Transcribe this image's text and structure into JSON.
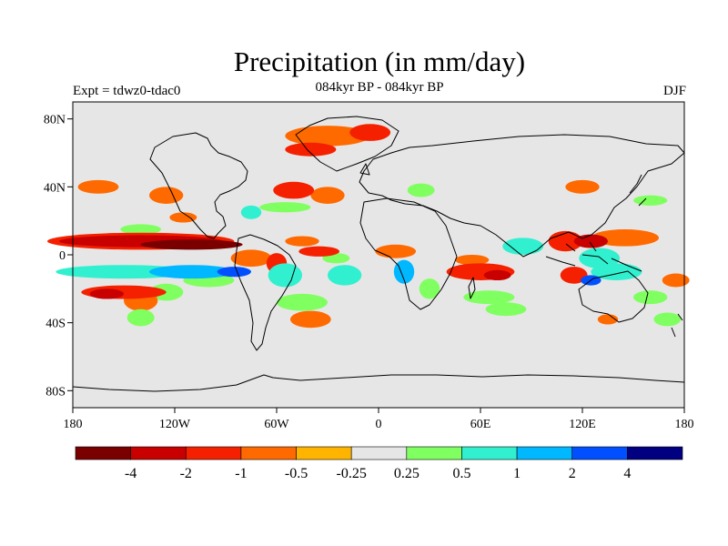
{
  "title": "Precipitation (in mm/day)",
  "subtitle": "084kyr BP - 084kyr BP",
  "left_label": "Expt = tdwz0-tdac0",
  "right_label": "DJF",
  "lat_ticks": [
    {
      "value": 80,
      "label": "80N"
    },
    {
      "value": 40,
      "label": "40N"
    },
    {
      "value": 0,
      "label": "0"
    },
    {
      "value": -40,
      "label": "40S"
    },
    {
      "value": -80,
      "label": "80S"
    }
  ],
  "lon_ticks": [
    {
      "value": -180,
      "label": "180"
    },
    {
      "value": -120,
      "label": "120W"
    },
    {
      "value": -60,
      "label": "60W"
    },
    {
      "value": 0,
      "label": "0"
    },
    {
      "value": 60,
      "label": "60E"
    },
    {
      "value": 120,
      "label": "120E"
    },
    {
      "value": 180,
      "label": "180"
    }
  ],
  "colorbar": {
    "colors": [
      "#7a0000",
      "#c80000",
      "#f52000",
      "#ff6a00",
      "#ffb400",
      "#e6e6e6",
      "#80ff60",
      "#30f0d0",
      "#00b8ff",
      "#0050ff",
      "#000080"
    ],
    "labels": [
      "-4",
      "-2",
      "-1",
      "-0.5",
      "-0.25",
      "0.25",
      "0.5",
      "1",
      "2",
      "4"
    ]
  },
  "anomalies": [
    {
      "lon": -140,
      "lat": 8,
      "rx": 48,
      "ry": 3.5,
      "level": -2
    },
    {
      "lon": -110,
      "lat": 6,
      "rx": 30,
      "ry": 3,
      "level": -4
    },
    {
      "lon": -140,
      "lat": 8,
      "rx": 55,
      "ry": 5,
      "level": -1
    },
    {
      "lon": -150,
      "lat": -10,
      "rx": 40,
      "ry": 4,
      "level": 1
    },
    {
      "lon": -110,
      "lat": -10,
      "rx": 25,
      "ry": 4,
      "level": 2
    },
    {
      "lon": -85,
      "lat": -10,
      "rx": 10,
      "ry": 3,
      "level": 4
    },
    {
      "lon": -150,
      "lat": -22,
      "rx": 25,
      "ry": 4,
      "level": -1
    },
    {
      "lon": -160,
      "lat": -23,
      "rx": 10,
      "ry": 3,
      "level": -2
    },
    {
      "lon": -125,
      "lat": -22,
      "rx": 10,
      "ry": 5,
      "level": 0.5
    },
    {
      "lon": -140,
      "lat": -27,
      "rx": 10,
      "ry": 6,
      "level": -0.5
    },
    {
      "lon": -140,
      "lat": -37,
      "rx": 8,
      "ry": 5,
      "level": 0.5
    },
    {
      "lon": -100,
      "lat": -15,
      "rx": 15,
      "ry": 4,
      "level": 0.5
    },
    {
      "lon": -75,
      "lat": -2,
      "rx": 12,
      "ry": 5,
      "level": -0.5
    },
    {
      "lon": -60,
      "lat": -5,
      "rx": 6,
      "ry": 6,
      "level": -1
    },
    {
      "lon": -55,
      "lat": -12,
      "rx": 10,
      "ry": 7,
      "level": 1
    },
    {
      "lon": -45,
      "lat": -28,
      "rx": 15,
      "ry": 5,
      "level": 0.5
    },
    {
      "lon": -40,
      "lat": -38,
      "rx": 12,
      "ry": 5,
      "level": -0.5
    },
    {
      "lon": -45,
      "lat": 8,
      "rx": 10,
      "ry": 3,
      "level": -0.5
    },
    {
      "lon": -35,
      "lat": 2,
      "rx": 12,
      "ry": 3,
      "level": -1
    },
    {
      "lon": -25,
      "lat": -2,
      "rx": 8,
      "ry": 3,
      "level": 0.5
    },
    {
      "lon": -20,
      "lat": -12,
      "rx": 10,
      "ry": 6,
      "level": 1
    },
    {
      "lon": 15,
      "lat": -10,
      "rx": 6,
      "ry": 7,
      "level": 2
    },
    {
      "lon": 10,
      "lat": 2,
      "rx": 12,
      "ry": 4,
      "level": -0.5
    },
    {
      "lon": 30,
      "lat": -20,
      "rx": 6,
      "ry": 6,
      "level": 0.5
    },
    {
      "lon": -30,
      "lat": 70,
      "rx": 25,
      "ry": 6,
      "level": -0.5
    },
    {
      "lon": -5,
      "lat": 72,
      "rx": 12,
      "ry": 5,
      "level": -1
    },
    {
      "lon": -40,
      "lat": 62,
      "rx": 15,
      "ry": 4,
      "level": -1
    },
    {
      "lon": -50,
      "lat": 38,
      "rx": 12,
      "ry": 5,
      "level": -1
    },
    {
      "lon": -30,
      "lat": 35,
      "rx": 10,
      "ry": 5,
      "level": -0.5
    },
    {
      "lon": -75,
      "lat": 25,
      "rx": 6,
      "ry": 4,
      "level": 1
    },
    {
      "lon": -55,
      "lat": 28,
      "rx": 15,
      "ry": 3,
      "level": 0.5
    },
    {
      "lon": -165,
      "lat": 40,
      "rx": 12,
      "ry": 4,
      "level": -0.5
    },
    {
      "lon": -125,
      "lat": 35,
      "rx": 10,
      "ry": 5,
      "level": -0.5
    },
    {
      "lon": -115,
      "lat": 22,
      "rx": 8,
      "ry": 3,
      "level": -0.5
    },
    {
      "lon": -140,
      "lat": 15,
      "rx": 12,
      "ry": 3,
      "level": 0.5
    },
    {
      "lon": 25,
      "lat": 38,
      "rx": 8,
      "ry": 4,
      "level": 0.5
    },
    {
      "lon": 60,
      "lat": -10,
      "rx": 20,
      "ry": 5,
      "level": -1
    },
    {
      "lon": 70,
      "lat": -12,
      "rx": 8,
      "ry": 3,
      "level": -2
    },
    {
      "lon": 55,
      "lat": -3,
      "rx": 10,
      "ry": 3,
      "level": -0.5
    },
    {
      "lon": 65,
      "lat": -25,
      "rx": 15,
      "ry": 4,
      "level": 0.5
    },
    {
      "lon": 85,
      "lat": 5,
      "rx": 12,
      "ry": 5,
      "level": 1
    },
    {
      "lon": 75,
      "lat": -32,
      "rx": 12,
      "ry": 4,
      "level": 0.5
    },
    {
      "lon": 115,
      "lat": -12,
      "rx": 8,
      "ry": 5,
      "level": -1
    },
    {
      "lon": 110,
      "lat": 8,
      "rx": 10,
      "ry": 6,
      "level": -1
    },
    {
      "lon": 125,
      "lat": 8,
      "rx": 10,
      "ry": 4,
      "level": -2
    },
    {
      "lon": 145,
      "lat": 10,
      "rx": 20,
      "ry": 5,
      "level": -0.5
    },
    {
      "lon": 130,
      "lat": -2,
      "rx": 12,
      "ry": 6,
      "level": 1
    },
    {
      "lon": 140,
      "lat": -10,
      "rx": 15,
      "ry": 5,
      "level": 1
    },
    {
      "lon": 125,
      "lat": -15,
      "rx": 6,
      "ry": 3,
      "level": 4
    },
    {
      "lon": 160,
      "lat": -25,
      "rx": 10,
      "ry": 4,
      "level": 0.5
    },
    {
      "lon": 175,
      "lat": -15,
      "rx": 8,
      "ry": 4,
      "level": -0.5
    },
    {
      "lon": 170,
      "lat": -38,
      "rx": 8,
      "ry": 4,
      "level": 0.5
    },
    {
      "lon": 120,
      "lat": 40,
      "rx": 10,
      "ry": 4,
      "level": -0.5
    },
    {
      "lon": 160,
      "lat": 32,
      "rx": 10,
      "ry": 3,
      "level": 0.5
    },
    {
      "lon": 135,
      "lat": -38,
      "rx": 6,
      "ry": 3,
      "level": -0.5
    }
  ]
}
